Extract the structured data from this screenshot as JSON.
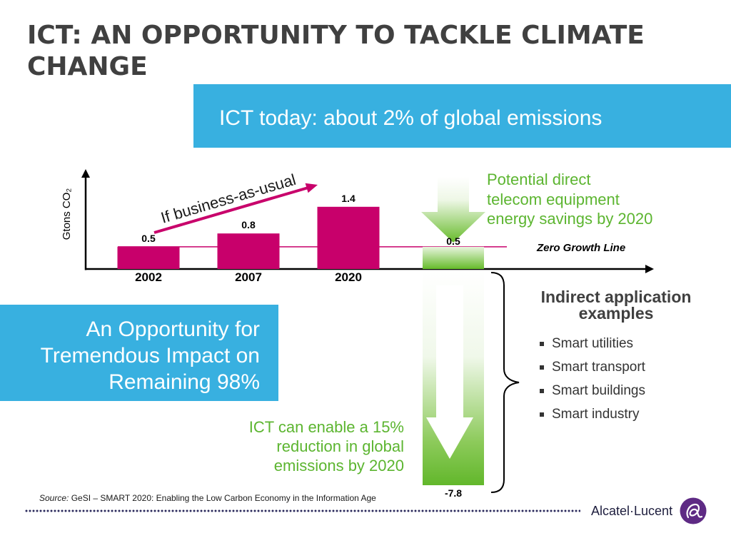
{
  "title": "ICT: AN OPPORTUNITY TO TACKLE CLIMATE CHANGE",
  "banner": {
    "text": "ICT today: about 2% of global emissions"
  },
  "opportunity_box": {
    "lines": [
      "An Opportunity for",
      "Tremendous Impact on",
      "Remaining 98%"
    ]
  },
  "direct_savings_note": {
    "lines": [
      "Potential direct",
      "telecom equipment",
      "energy savings by 2020"
    ]
  },
  "enable_note": {
    "lines": [
      "ICT can enable a 15%",
      "reduction in global",
      "emissions by 2020"
    ]
  },
  "indirect_examples": {
    "heading_lines": [
      "Indirect application",
      "examples"
    ],
    "items": [
      "Smart utilities",
      "Smart transport",
      "Smart buildings",
      "Smart industry"
    ]
  },
  "source": {
    "label": "Source:",
    "text": "GeSI – SMART 2020: Enabling the Low Carbon Economy in the Information Age"
  },
  "footer": {
    "logo_text": "Alcatel·Lucent",
    "logo_icon": "alcatel-lucent-swirl-icon"
  },
  "colors": {
    "title": "#404040",
    "blue": "#38b0e0",
    "magenta": "#c8006b",
    "green": "#5cb530",
    "purple": "#5e2a84"
  },
  "chart_data": {
    "type": "bar",
    "ylabel": "Gtons CO₂",
    "ylim": [
      0,
      2.2
    ],
    "grid": false,
    "categories": [
      "2002",
      "2007",
      "2020"
    ],
    "series": [
      {
        "values": [
          0.5,
          0.8,
          1.4
        ],
        "color": "#c8006b"
      }
    ],
    "trend_annotation": "If business-as-usual",
    "zero_growth_line": {
      "value": 0.5,
      "label": "Zero Growth Line"
    },
    "direct_savings": {
      "value": 0.5
    },
    "indirect_reduction": {
      "value": -7.8
    }
  }
}
